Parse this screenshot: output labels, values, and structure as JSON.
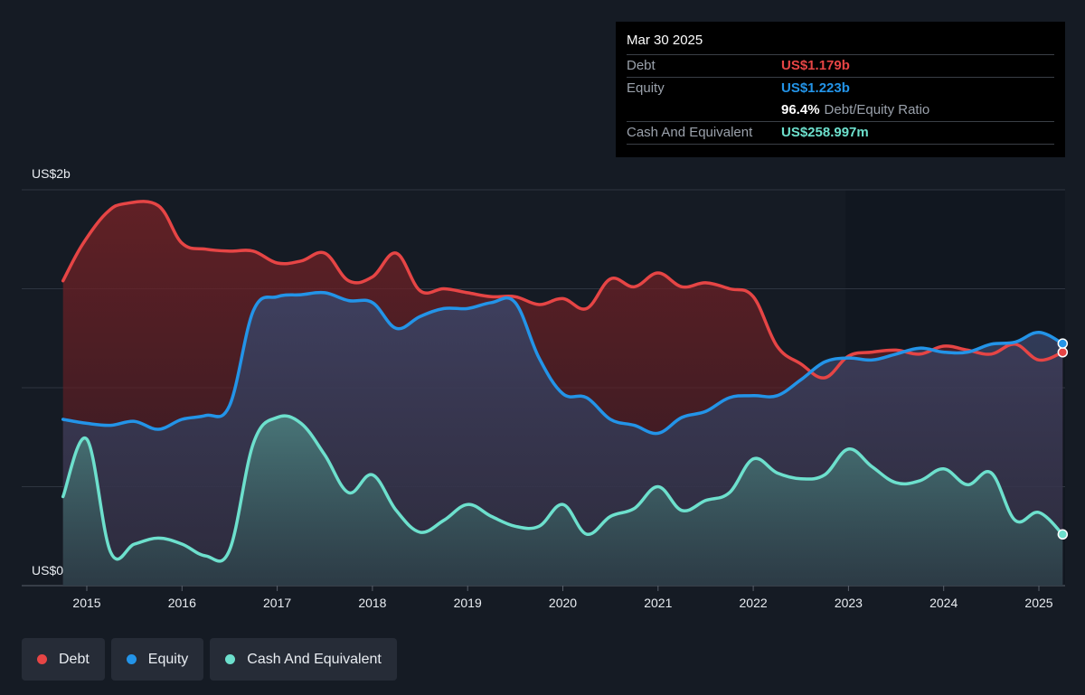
{
  "tooltip": {
    "date": "Mar 30 2025",
    "debt_label": "Debt",
    "debt_value": "US$1.179b",
    "equity_label": "Equity",
    "equity_value": "US$1.223b",
    "ratio_value": "96.4%",
    "ratio_label": "Debt/Equity Ratio",
    "cash_label": "Cash And Equivalent",
    "cash_value": "US$258.997m"
  },
  "legend": [
    {
      "label": "Debt",
      "color": "#e64545"
    },
    {
      "label": "Equity",
      "color": "#2394e8"
    },
    {
      "label": "Cash And Equivalent",
      "color": "#6de0cd"
    }
  ],
  "chart_data": {
    "type": "area",
    "y_top_label": "US$2b",
    "y_bottom_label": "US$0",
    "ylim": [
      0,
      2.0
    ],
    "xlim": [
      2014.75,
      2025.25
    ],
    "x_ticks": [
      "2015",
      "2016",
      "2017",
      "2018",
      "2019",
      "2020",
      "2021",
      "2022",
      "2023",
      "2024",
      "2025"
    ],
    "grid": true,
    "legend_position": "bottom-left",
    "series": [
      {
        "name": "Debt",
        "color": "#e64545",
        "x": [
          2014.75,
          2014.95,
          2015.2,
          2015.4,
          2015.75,
          2016.0,
          2016.25,
          2016.5,
          2016.75,
          2017.0,
          2017.25,
          2017.5,
          2017.75,
          2018.0,
          2018.25,
          2018.5,
          2018.75,
          2019.0,
          2019.25,
          2019.5,
          2019.75,
          2020.0,
          2020.25,
          2020.5,
          2020.75,
          2021.0,
          2021.25,
          2021.5,
          2021.75,
          2022.0,
          2022.25,
          2022.5,
          2022.75,
          2023.0,
          2023.25,
          2023.5,
          2023.75,
          2024.0,
          2024.25,
          2024.5,
          2024.75,
          2025.0,
          2025.25
        ],
        "values": [
          1.54,
          1.72,
          1.88,
          1.93,
          1.92,
          1.73,
          1.7,
          1.69,
          1.69,
          1.63,
          1.64,
          1.68,
          1.54,
          1.56,
          1.68,
          1.49,
          1.5,
          1.48,
          1.46,
          1.46,
          1.42,
          1.45,
          1.4,
          1.55,
          1.51,
          1.58,
          1.51,
          1.53,
          1.5,
          1.46,
          1.21,
          1.12,
          1.05,
          1.16,
          1.18,
          1.19,
          1.17,
          1.21,
          1.19,
          1.17,
          1.22,
          1.14,
          1.179
        ]
      },
      {
        "name": "Equity",
        "color": "#2394e8",
        "x": [
          2014.75,
          2015.0,
          2015.25,
          2015.5,
          2015.75,
          2016.0,
          2016.25,
          2016.5,
          2016.75,
          2017.0,
          2017.25,
          2017.5,
          2017.75,
          2018.0,
          2018.25,
          2018.5,
          2018.75,
          2019.0,
          2019.25,
          2019.5,
          2019.75,
          2020.0,
          2020.25,
          2020.5,
          2020.75,
          2021.0,
          2021.25,
          2021.5,
          2021.75,
          2022.0,
          2022.25,
          2022.5,
          2022.75,
          2023.0,
          2023.25,
          2023.5,
          2023.75,
          2024.0,
          2024.25,
          2024.5,
          2024.75,
          2025.0,
          2025.25
        ],
        "values": [
          0.84,
          0.82,
          0.81,
          0.83,
          0.79,
          0.84,
          0.86,
          0.91,
          1.39,
          1.46,
          1.47,
          1.48,
          1.44,
          1.43,
          1.3,
          1.36,
          1.4,
          1.4,
          1.43,
          1.43,
          1.15,
          0.97,
          0.95,
          0.84,
          0.81,
          0.77,
          0.85,
          0.88,
          0.95,
          0.96,
          0.96,
          1.04,
          1.13,
          1.15,
          1.14,
          1.17,
          1.2,
          1.18,
          1.18,
          1.22,
          1.23,
          1.28,
          1.223
        ]
      },
      {
        "name": "Cash And Equivalent",
        "color": "#6de0cd",
        "x": [
          2014.75,
          2015.0,
          2015.25,
          2015.5,
          2015.75,
          2016.0,
          2016.25,
          2016.5,
          2016.75,
          2017.0,
          2017.25,
          2017.5,
          2017.75,
          2018.0,
          2018.25,
          2018.5,
          2018.75,
          2019.0,
          2019.25,
          2019.5,
          2019.75,
          2020.0,
          2020.25,
          2020.5,
          2020.75,
          2021.0,
          2021.25,
          2021.5,
          2021.75,
          2022.0,
          2022.25,
          2022.5,
          2022.75,
          2023.0,
          2023.25,
          2023.5,
          2023.75,
          2024.0,
          2024.25,
          2024.5,
          2024.75,
          2025.0,
          2025.25
        ],
        "values": [
          0.45,
          0.74,
          0.17,
          0.21,
          0.24,
          0.21,
          0.15,
          0.18,
          0.72,
          0.85,
          0.82,
          0.66,
          0.47,
          0.56,
          0.38,
          0.27,
          0.33,
          0.41,
          0.35,
          0.3,
          0.3,
          0.41,
          0.26,
          0.35,
          0.39,
          0.5,
          0.38,
          0.43,
          0.47,
          0.64,
          0.57,
          0.54,
          0.56,
          0.69,
          0.6,
          0.52,
          0.53,
          0.59,
          0.51,
          0.57,
          0.33,
          0.37,
          0.259
        ]
      }
    ]
  }
}
